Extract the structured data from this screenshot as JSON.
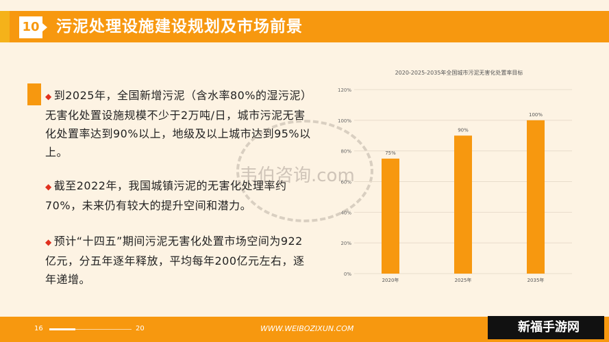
{
  "header": {
    "number": "10",
    "title": "污泥处理设施建设规划及市场前景"
  },
  "bullets": [
    "到2025年，全国新增污泥（含水率80%的湿污泥）无害化处置设施规模不少于2万吨/日，城市污泥无害化处置率达到90%以上，地级及以上城市达到95%以上。",
    "截至2022年，我国城镇污泥的无害化处理率约70%，未来仍有较大的提升空间和潜力。",
    "预计“十四五”期间污泥无害化处置市场空间为922亿元，分五年逐年释放，平均每年200亿元左右，逐年递增。"
  ],
  "bullet_icon": "diamond-icon",
  "watermark": "韦伯咨询.com",
  "chart_data": {
    "type": "bar",
    "title": "2020-2025-2035年全国城市污泥无害化处置率目标",
    "categories": [
      "2020年",
      "2025年",
      "2035年"
    ],
    "values": [
      75,
      90,
      100
    ],
    "data_labels": [
      "75%",
      "90%",
      "100%"
    ],
    "yticks": [
      "0%",
      "20%",
      "40%",
      "60%",
      "80%",
      "100%",
      "120%"
    ],
    "ylim": [
      0,
      120
    ],
    "grid": true,
    "color": "#f7980f"
  },
  "footer": {
    "page_current": "16",
    "page_total": "20",
    "url": "WWW.WEIBOZIXUN.COM",
    "logo_text": "新福手游网"
  },
  "colors": {
    "accent": "#f7980f",
    "background": "#fdf3e3"
  }
}
